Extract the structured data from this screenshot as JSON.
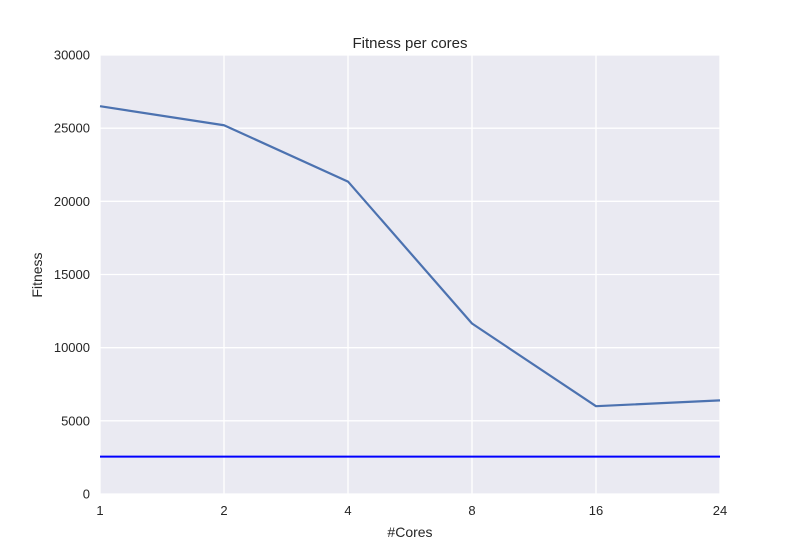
{
  "chart_data": {
    "type": "line",
    "title": "Fitness per cores",
    "xlabel": "#Cores",
    "ylabel": "Fitness",
    "categories": [
      "1",
      "2",
      "4",
      "8",
      "16",
      "24"
    ],
    "ylim": [
      0,
      30000
    ],
    "yticks": [
      0,
      5000,
      10000,
      15000,
      20000,
      25000,
      30000
    ],
    "grid": true,
    "series": [
      {
        "values": [
          26500,
          25200,
          21350,
          11650,
          6000,
          6400
        ],
        "color": "#4c72b0"
      }
    ],
    "reference_lines": [
      {
        "y": 2550,
        "color": "#0000ff"
      }
    ],
    "background": "#eaeaf2",
    "grid_color": "#ffffff"
  }
}
